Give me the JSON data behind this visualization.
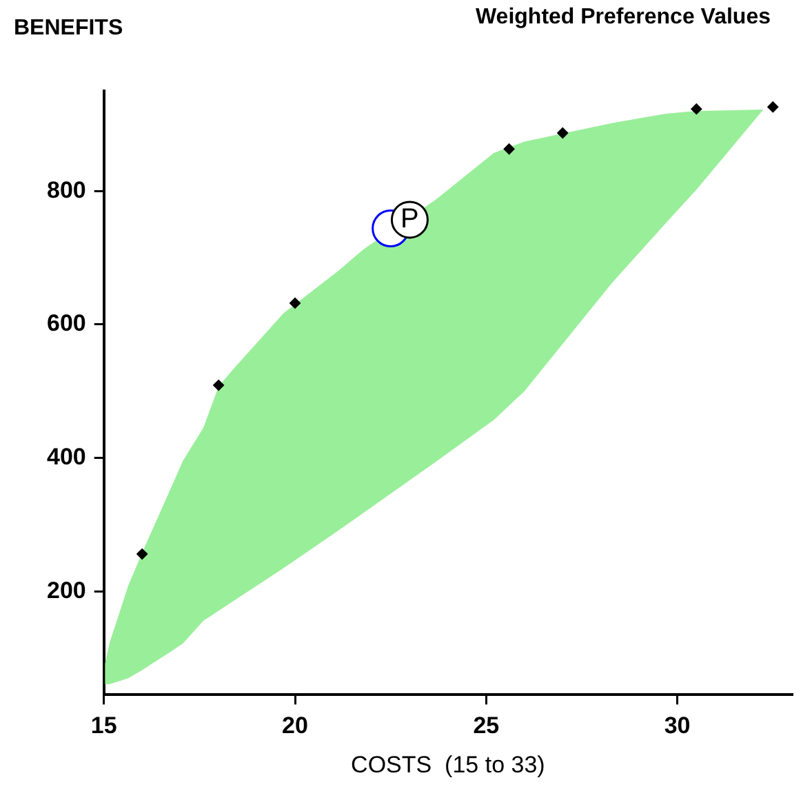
{
  "chart_data": {
    "type": "scatter",
    "title": "Weighted Preference Values",
    "ylabel": "BENEFITS",
    "xlabel": "COSTS  (15 to 33)",
    "xlim": [
      15,
      33
    ],
    "xticks": [
      15,
      20,
      25,
      30
    ],
    "ylim": [
      45,
      950
    ],
    "yticks": [
      200,
      400,
      600,
      800
    ],
    "grid": false,
    "legend": false,
    "series": [
      {
        "type": "area",
        "color": "#99ee99",
        "x": [
          15.03,
          15.15,
          15.64,
          16,
          16.7,
          17.07,
          17.6,
          18,
          18.4,
          19.7,
          21.1,
          21.8,
          23.7,
          25.2,
          26,
          28.3,
          29.7,
          30.5,
          32.25,
          30.5,
          29.7,
          28.3,
          26,
          25.2,
          23.7,
          21.8,
          21.1,
          19.7,
          18.4,
          18,
          17.6,
          17.07,
          16.7,
          16,
          15.64,
          15.15,
          15.03
        ],
        "values": [
          92,
          123,
          209,
          258,
          348,
          396,
          445,
          507,
          534,
          617,
          679,
          713,
          788,
          857,
          874,
          902,
          916,
          920,
          922,
          802,
          752,
          663,
          500,
          457,
          395,
          318,
          290,
          235,
          186,
          171,
          156,
          122,
          108,
          82,
          70,
          61,
          61
        ]
      },
      {
        "marker": "diamond",
        "color": "#000000",
        "x": [
          16,
          18,
          20,
          25.6,
          27,
          30.5,
          32.5
        ],
        "values": [
          256,
          509,
          632,
          863,
          887,
          923,
          926
        ]
      },
      {
        "marker": "circle",
        "colors": [
          "#0000ff",
          "#000000"
        ],
        "x": [
          22.5,
          23
        ],
        "values": [
          744,
          757
        ]
      }
    ],
    "annotations": [
      {
        "text": "P",
        "x": 23,
        "y": 757
      }
    ]
  }
}
